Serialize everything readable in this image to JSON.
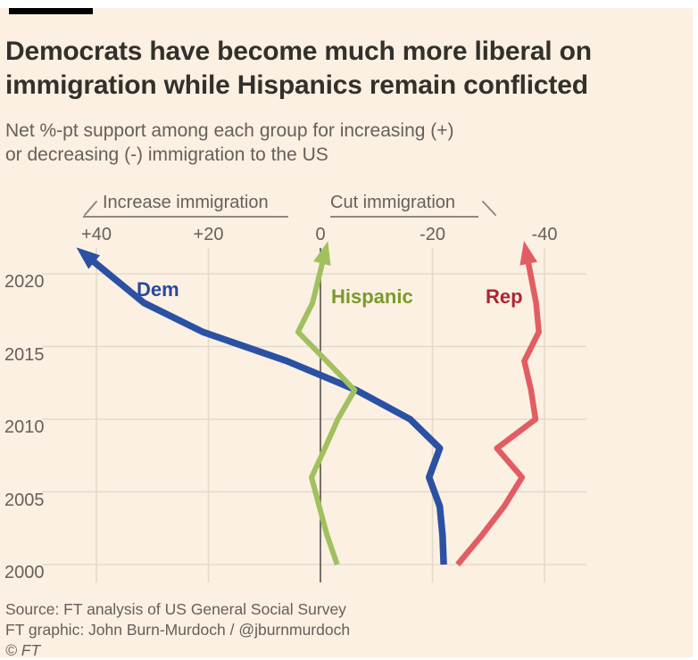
{
  "header": {
    "title_line1": "Democrats have become much more liberal on",
    "title_line2": "immigration while Hispanics remain conflicted",
    "subtitle_line1": "Net %-pt support among each group for increasing (+)",
    "subtitle_line2": "or decreasing (-) immigration to the US"
  },
  "annotations": {
    "increase_label": "Increase immigration",
    "cut_label": "Cut immigration"
  },
  "footer": {
    "source": "Source: FT analysis of US General Social Survey",
    "credit": "FT graphic: John Burn-Murdoch / @jburnmurdoch",
    "copyright": "© FT"
  },
  "colors": {
    "background": "#fbf0e2",
    "title_text": "#33302c",
    "muted_text": "#66605b",
    "gridline": "#e4d9c9",
    "zero_line": "#57514b",
    "dem_line": "#2a51a3",
    "dem_label": "#27499c",
    "hispanic_line": "#a0c15e",
    "hispanic_label": "#7a9a28",
    "rep_line": "#e25d62",
    "rep_label": "#ad2533"
  },
  "chart_data": {
    "type": "line",
    "title": "Net %-pt support among each group for increasing (+) or decreasing (-) immigration to the US",
    "x_years": [
      2000,
      2002,
      2004,
      2006,
      2008,
      2010,
      2012,
      2014,
      2016,
      2018,
      2021
    ],
    "series": [
      {
        "name": "Dem",
        "line_color": "#2a51a3",
        "label_color": "#27499c",
        "stroke_width": 7.5,
        "values": [
          -22.0,
          -21.8,
          -21.3,
          -19.4,
          -21.3,
          -16.0,
          -6.4,
          6.0,
          21.0,
          31.5,
          41.0
        ]
      },
      {
        "name": "Hispanic",
        "line_color": "#a0c15e",
        "label_color": "#7a9a28",
        "stroke_width": 6,
        "values": [
          -3.0,
          -1.2,
          0.2,
          1.6,
          -0.8,
          -3.1,
          -6.1,
          -1.1,
          4.0,
          1.4,
          -0.5
        ]
      },
      {
        "name": "Rep",
        "line_color": "#e25d62",
        "label_color": "#ad2533",
        "stroke_width": 6.5,
        "values": [
          -24.5,
          -28.8,
          -32.8,
          -36.0,
          -31.5,
          -38.4,
          -37.6,
          -36.4,
          -39.0,
          -38.5,
          -37.0
        ]
      }
    ],
    "x_ticks": [
      {
        "label": "+40",
        "value": 40
      },
      {
        "label": "+20",
        "value": 20
      },
      {
        "label": "0",
        "value": 0
      },
      {
        "label": "-20",
        "value": -20
      },
      {
        "label": "-40",
        "value": -40
      }
    ],
    "y_ticks": [
      {
        "label": "2020",
        "value": 2020
      },
      {
        "label": "2015",
        "value": 2015
      },
      {
        "label": "2010",
        "value": 2010
      },
      {
        "label": "2005",
        "value": 2005
      },
      {
        "label": "2000",
        "value": 2000
      }
    ],
    "x_axis_note": "values are net %-pt support; positive = increase immigration, negative = cut immigration",
    "xlim": [
      50,
      -47.5
    ],
    "ylim": [
      1998.6,
      2022.2
    ],
    "grid": true,
    "zero_line": true,
    "arrow_ends": true,
    "legend_position": "inline-labels"
  }
}
